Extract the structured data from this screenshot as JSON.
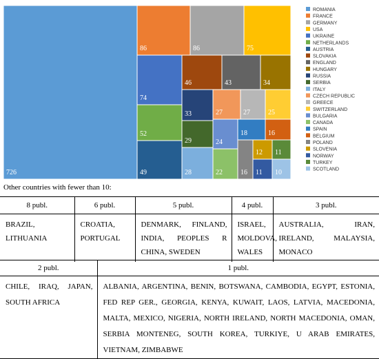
{
  "chart_data": {
    "type": "treemap",
    "series": [
      {
        "name": "ROMANIA",
        "value": 726,
        "color": "#5b9bd5"
      },
      {
        "name": "FRANCE",
        "value": 86,
        "color": "#ed7d31"
      },
      {
        "name": "GERMANY",
        "value": 86,
        "color": "#a5a5a5"
      },
      {
        "name": "USA",
        "value": 75,
        "color": "#ffc000"
      },
      {
        "name": "UKRAINE",
        "value": 74,
        "color": "#4472c4"
      },
      {
        "name": "NETHERLANDS",
        "value": 52,
        "color": "#70ad47"
      },
      {
        "name": "AUSTRIA",
        "value": 49,
        "color": "#255e91"
      },
      {
        "name": "SLOVAKIA",
        "value": 46,
        "color": "#9e480e"
      },
      {
        "name": "ENGLAND",
        "value": 43,
        "color": "#636363"
      },
      {
        "name": "HUNGARY",
        "value": 34,
        "color": "#997300"
      },
      {
        "name": "RUSSIA",
        "value": 33,
        "color": "#264478"
      },
      {
        "name": "SERBIA",
        "value": 29,
        "color": "#43682b"
      },
      {
        "name": "ITALY",
        "value": 28,
        "color": "#7cafdd"
      },
      {
        "name": "CZECH REPUBLIC",
        "value": 27,
        "color": "#f1975a"
      },
      {
        "name": "GREECE",
        "value": 27,
        "color": "#b7b7b7"
      },
      {
        "name": "SWITZERLAND",
        "value": 25,
        "color": "#ffcd33"
      },
      {
        "name": "BULGARIA",
        "value": 24,
        "color": "#698ed0"
      },
      {
        "name": "CANADA",
        "value": 22,
        "color": "#8cc168"
      },
      {
        "name": "SPAIN",
        "value": 18,
        "color": "#327dc2"
      },
      {
        "name": "BELGIUM",
        "value": 16,
        "color": "#d26012"
      },
      {
        "name": "POLAND",
        "value": 16,
        "color": "#848484"
      },
      {
        "name": "SLOVENIA",
        "value": 12,
        "color": "#cc9a00"
      },
      {
        "name": "NORWAY",
        "value": 11,
        "color": "#335aa1"
      },
      {
        "name": "TURKEY",
        "value": 11,
        "color": "#5a8a39"
      },
      {
        "name": "SCOTLAND",
        "value": 10,
        "color": "#9dc3e6"
      }
    ],
    "legend_position": "right"
  },
  "caption": "Other countries with fewer than 10:",
  "table1": {
    "headers": [
      "8 publ.",
      "6 publ.",
      "5 publ.",
      "4 publ.",
      "3 publ."
    ],
    "cells": [
      "BRAZIL, LITHUANIA",
      "CROATIA, PORTUGAL",
      "DENMARK, FINLAND, INDIA, PEOPLES R CHINA, SWEDEN",
      "ISRAEL, MOLDOVA, WALES",
      "AUSTRALIA, IRAN, IRELAND, MALAYSIA, MONACO"
    ]
  },
  "table2": {
    "headers": [
      "2 publ.",
      "1 publ."
    ],
    "cells": [
      "CHILE, IRAQ, JAPAN, SOUTH AFRICA",
      "ALBANIA, ARGENTINA, BENIN, BOTSWANA, CAMBODIA, EGYPT, ESTONIA, FED REP GER., GEORGIA, KENYA, KUWAIT, LAOS, LATVIA, MACEDONIA, MALTA, MEXICO, NIGERIA, NORTH IRELAND, NORTH MACEDONIA, OMAN, SERBIA MONTENEG, SOUTH KOREA, TURKIYE, U ARAB EMIRATES, VIETNAM, ZIMBABWE"
    ]
  }
}
